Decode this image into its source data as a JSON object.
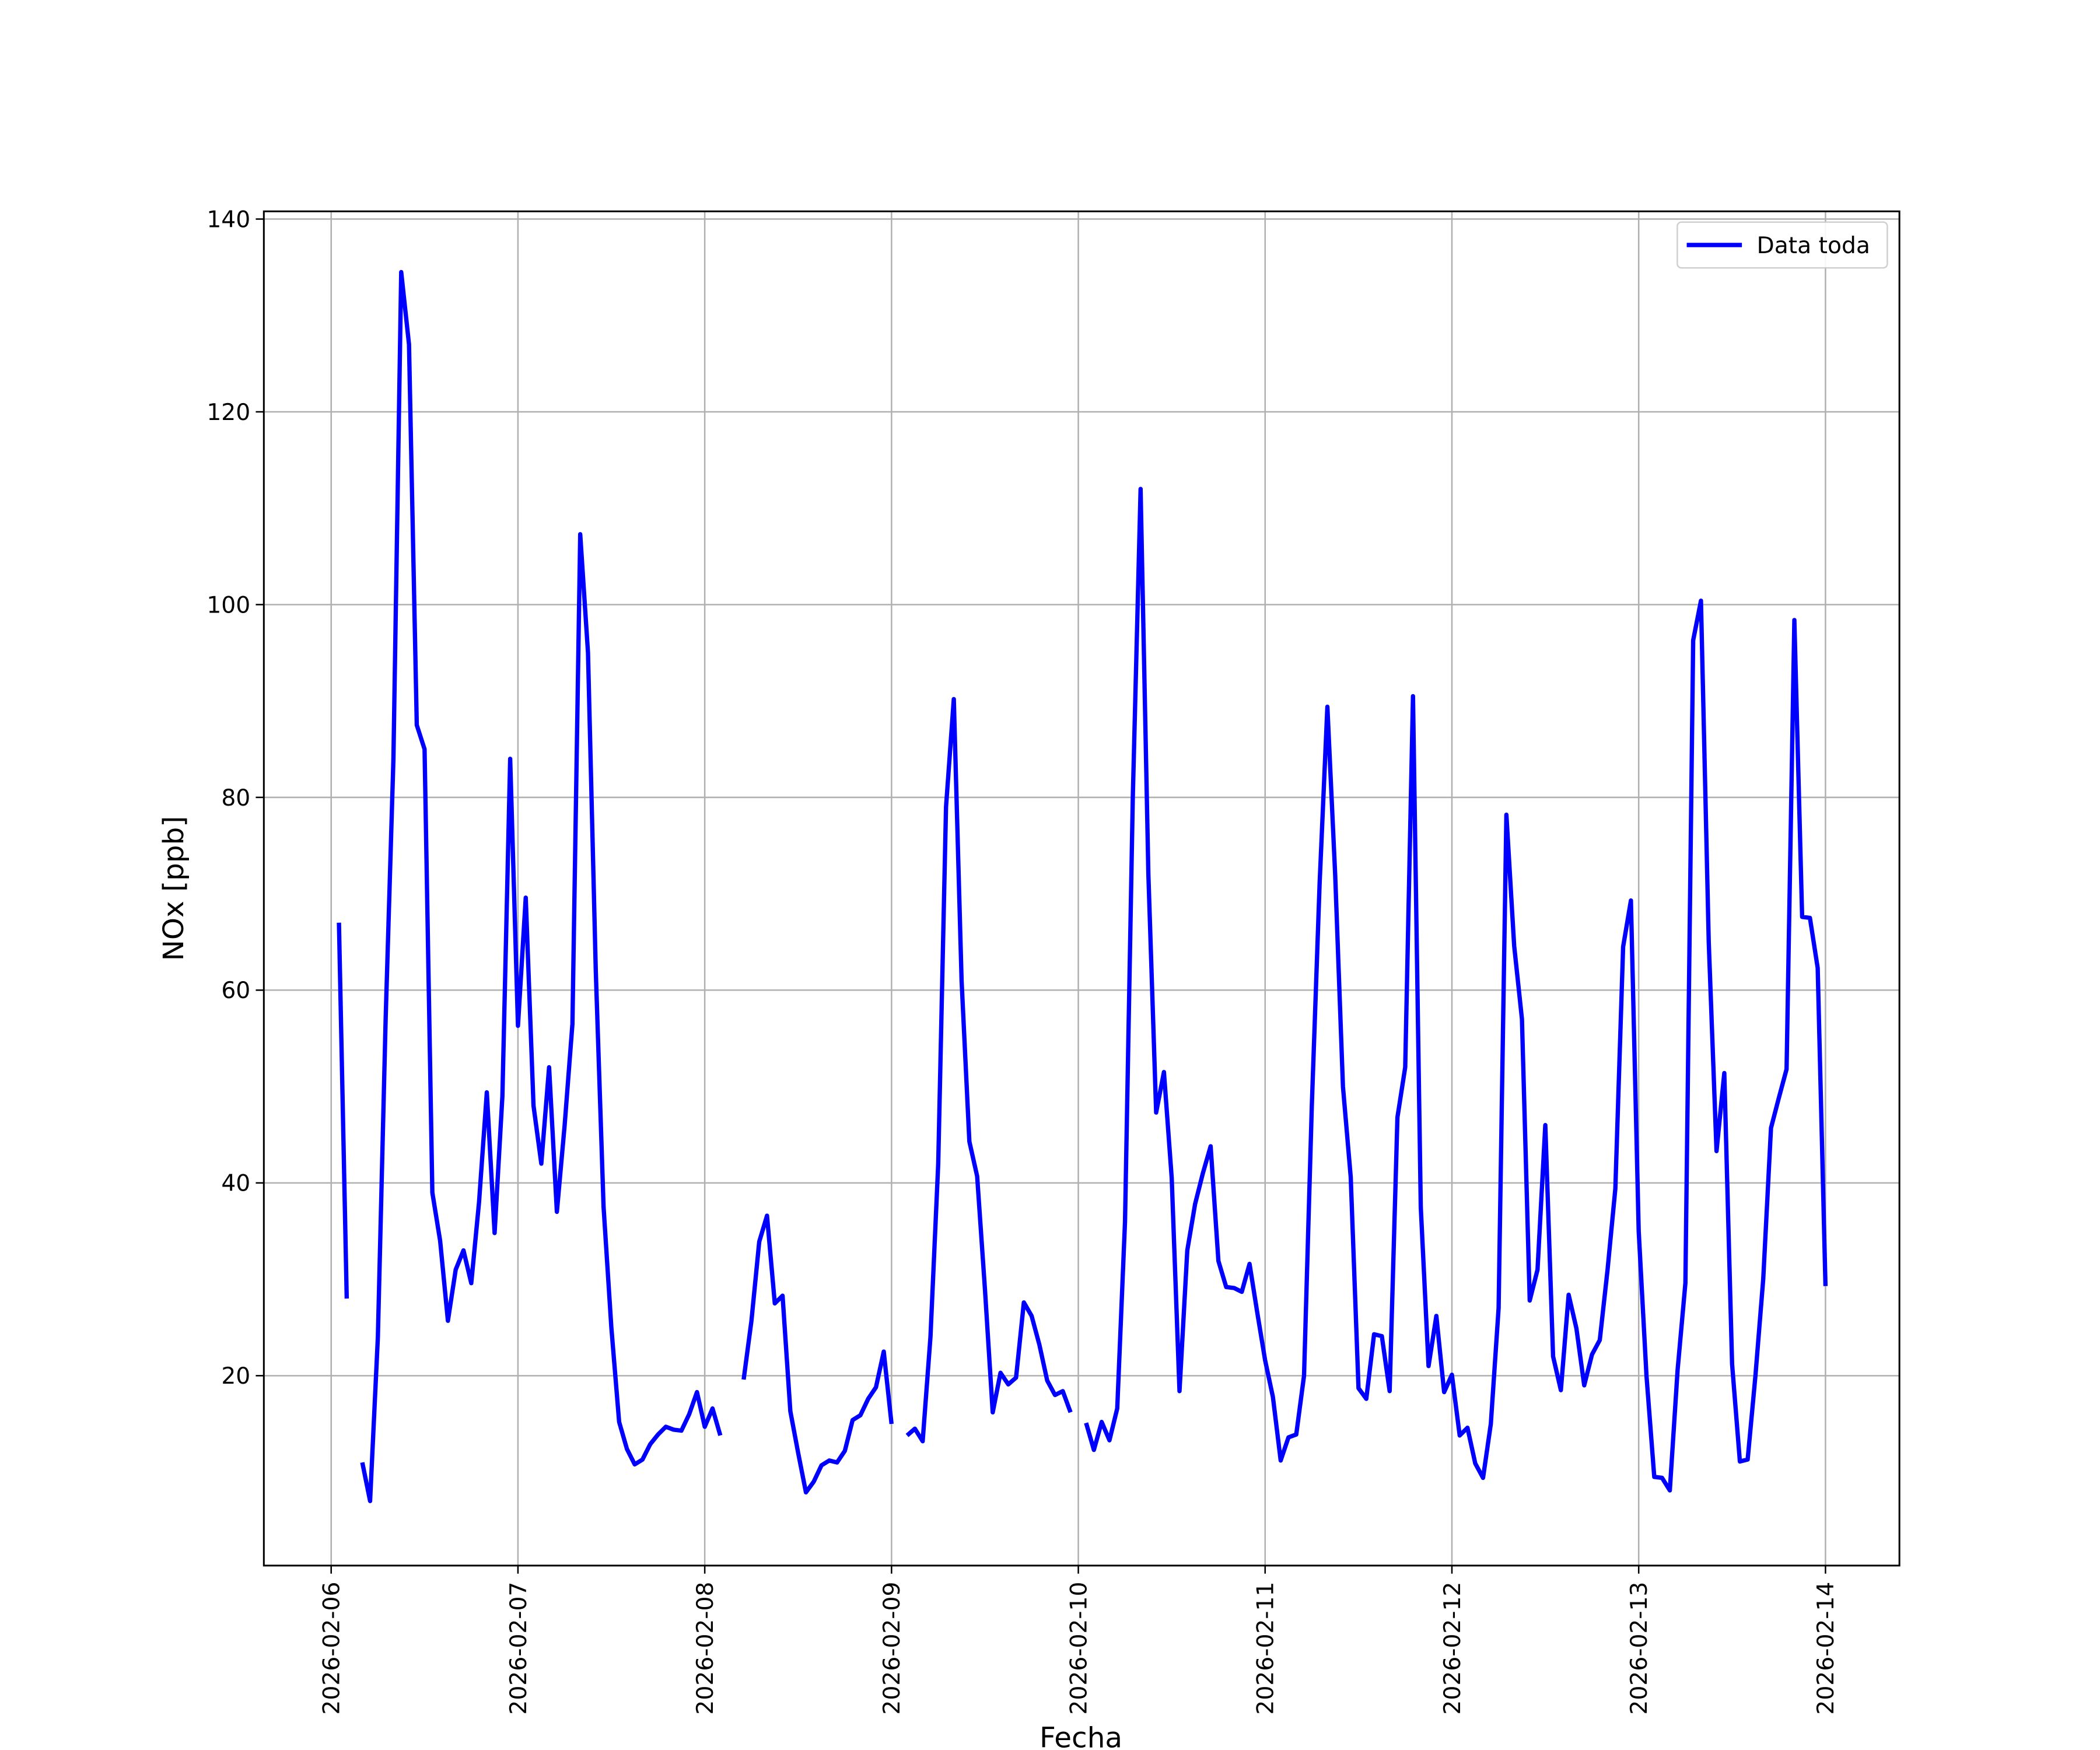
{
  "chart_data": {
    "type": "line",
    "xlabel": "Fecha",
    "ylabel": "NOx [ppb]",
    "x": [
      "2026-02-06 01:00",
      "2026-02-06 02:00",
      "2026-02-06 03:00",
      "2026-02-06 04:00",
      "2026-02-06 05:00",
      "2026-02-06 06:00",
      "2026-02-06 07:00",
      "2026-02-06 08:00",
      "2026-02-06 09:00",
      "2026-02-06 10:00",
      "2026-02-06 11:00",
      "2026-02-06 12:00",
      "2026-02-06 13:00",
      "2026-02-06 14:00",
      "2026-02-06 15:00",
      "2026-02-06 16:00",
      "2026-02-06 17:00",
      "2026-02-06 18:00",
      "2026-02-06 19:00",
      "2026-02-06 20:00",
      "2026-02-06 21:00",
      "2026-02-06 22:00",
      "2026-02-06 23:00",
      "2026-02-07 00:00",
      "2026-02-07 01:00",
      "2026-02-07 02:00",
      "2026-02-07 03:00",
      "2026-02-07 04:00",
      "2026-02-07 05:00",
      "2026-02-07 06:00",
      "2026-02-07 07:00",
      "2026-02-07 08:00",
      "2026-02-07 09:00",
      "2026-02-07 10:00",
      "2026-02-07 11:00",
      "2026-02-07 12:00",
      "2026-02-07 13:00",
      "2026-02-07 14:00",
      "2026-02-07 15:00",
      "2026-02-07 16:00",
      "2026-02-07 17:00",
      "2026-02-07 18:00",
      "2026-02-07 19:00",
      "2026-02-07 20:00",
      "2026-02-07 21:00",
      "2026-02-07 22:00",
      "2026-02-07 23:00",
      "2026-02-08 00:00",
      "2026-02-08 01:00",
      "2026-02-08 02:00",
      "2026-02-08 03:00",
      "2026-02-08 04:00",
      "2026-02-08 05:00",
      "2026-02-08 06:00",
      "2026-02-08 07:00",
      "2026-02-08 08:00",
      "2026-02-08 09:00",
      "2026-02-08 10:00",
      "2026-02-08 11:00",
      "2026-02-08 12:00",
      "2026-02-08 13:00",
      "2026-02-08 14:00",
      "2026-02-08 15:00",
      "2026-02-08 16:00",
      "2026-02-08 17:00",
      "2026-02-08 18:00",
      "2026-02-08 19:00",
      "2026-02-08 20:00",
      "2026-02-08 21:00",
      "2026-02-08 22:00",
      "2026-02-08 23:00",
      "2026-02-09 00:00",
      "2026-02-09 01:00",
      "2026-02-09 02:00",
      "2026-02-09 03:00",
      "2026-02-09 04:00",
      "2026-02-09 05:00",
      "2026-02-09 06:00",
      "2026-02-09 07:00",
      "2026-02-09 08:00",
      "2026-02-09 09:00",
      "2026-02-09 10:00",
      "2026-02-09 11:00",
      "2026-02-09 12:00",
      "2026-02-09 13:00",
      "2026-02-09 14:00",
      "2026-02-09 15:00",
      "2026-02-09 16:00",
      "2026-02-09 17:00",
      "2026-02-09 18:00",
      "2026-02-09 19:00",
      "2026-02-09 20:00",
      "2026-02-09 21:00",
      "2026-02-09 22:00",
      "2026-02-09 23:00",
      "2026-02-10 00:00",
      "2026-02-10 01:00",
      "2026-02-10 02:00",
      "2026-02-10 03:00",
      "2026-02-10 04:00",
      "2026-02-10 05:00",
      "2026-02-10 06:00",
      "2026-02-10 07:00",
      "2026-02-10 08:00",
      "2026-02-10 09:00",
      "2026-02-10 10:00",
      "2026-02-10 11:00",
      "2026-02-10 12:00",
      "2026-02-10 13:00",
      "2026-02-10 14:00",
      "2026-02-10 15:00",
      "2026-02-10 16:00",
      "2026-02-10 17:00",
      "2026-02-10 18:00",
      "2026-02-10 19:00",
      "2026-02-10 20:00",
      "2026-02-10 21:00",
      "2026-02-10 22:00",
      "2026-02-10 23:00",
      "2026-02-11 00:00",
      "2026-02-11 01:00",
      "2026-02-11 02:00",
      "2026-02-11 03:00",
      "2026-02-11 04:00",
      "2026-02-11 05:00",
      "2026-02-11 06:00",
      "2026-02-11 07:00",
      "2026-02-11 08:00",
      "2026-02-11 09:00",
      "2026-02-11 10:00",
      "2026-02-11 11:00",
      "2026-02-11 12:00",
      "2026-02-11 13:00",
      "2026-02-11 14:00",
      "2026-02-11 15:00",
      "2026-02-11 16:00",
      "2026-02-11 17:00",
      "2026-02-11 18:00",
      "2026-02-11 19:00",
      "2026-02-11 20:00",
      "2026-02-11 21:00",
      "2026-02-11 22:00",
      "2026-02-11 23:00",
      "2026-02-12 00:00",
      "2026-02-12 01:00",
      "2026-02-12 02:00",
      "2026-02-12 03:00",
      "2026-02-12 04:00",
      "2026-02-12 05:00",
      "2026-02-12 06:00",
      "2026-02-12 07:00",
      "2026-02-12 08:00",
      "2026-02-12 09:00",
      "2026-02-12 10:00",
      "2026-02-12 11:00",
      "2026-02-12 12:00",
      "2026-02-12 13:00",
      "2026-02-12 14:00",
      "2026-02-12 15:00",
      "2026-02-12 16:00",
      "2026-02-12 17:00",
      "2026-02-12 18:00",
      "2026-02-12 19:00",
      "2026-02-12 20:00",
      "2026-02-12 21:00",
      "2026-02-12 22:00",
      "2026-02-12 23:00",
      "2026-02-13 00:00",
      "2026-02-13 01:00",
      "2026-02-13 02:00",
      "2026-02-13 03:00",
      "2026-02-13 04:00",
      "2026-02-13 05:00",
      "2026-02-13 06:00",
      "2026-02-13 07:00",
      "2026-02-13 08:00",
      "2026-02-13 09:00",
      "2026-02-13 10:00",
      "2026-02-13 11:00",
      "2026-02-13 12:00",
      "2026-02-13 13:00",
      "2026-02-13 14:00",
      "2026-02-13 15:00",
      "2026-02-13 16:00",
      "2026-02-13 17:00",
      "2026-02-13 18:00",
      "2026-02-13 19:00",
      "2026-02-13 20:00",
      "2026-02-13 21:00",
      "2026-02-13 22:00",
      "2026-02-13 23:00",
      "2026-02-14 00:00"
    ],
    "series": [
      {
        "name": "Data toda",
        "color": "#0000ff",
        "values": [
          67,
          28,
          null,
          11,
          7,
          24,
          57,
          84,
          134.5,
          127,
          87.5,
          85,
          39,
          34,
          25.7,
          31,
          33,
          29.6,
          38,
          49.4,
          34.8,
          49,
          84,
          56.3,
          69.6,
          48,
          42,
          52,
          37,
          46,
          56.5,
          107.3,
          95,
          62,
          37.5,
          25,
          15.2,
          12.4,
          10.8,
          11.3,
          12.9,
          13.9,
          14.7,
          14.4,
          14.3,
          16,
          18.3,
          14.7,
          16.6,
          13.8,
          null,
          null,
          19.6,
          25.7,
          33.9,
          36.6,
          27.5,
          28.3,
          16.3,
          12,
          7.9,
          9,
          10.7,
          11.2,
          11,
          12.2,
          15.4,
          15.9,
          17.6,
          18.8,
          22.5,
          15,
          null,
          13.8,
          14.5,
          13.2,
          24,
          42,
          79,
          90.2,
          61,
          44.3,
          40.7,
          29,
          16.2,
          20.3,
          19.1,
          19.8,
          27.6,
          26.2,
          23.2,
          19.5,
          18,
          18.4,
          16.2,
          null,
          15.1,
          12.3,
          15.2,
          13.3,
          16.6,
          36,
          80,
          112,
          72,
          47.3,
          51.5,
          40.5,
          18.4,
          33,
          37.8,
          41,
          43.8,
          31.9,
          29.2,
          29.1,
          28.7,
          31.6,
          26.5,
          21.6,
          17.8,
          11.2,
          13.6,
          13.9,
          20,
          48,
          71,
          89.4,
          72,
          50,
          40.6,
          18.7,
          17.6,
          24.3,
          24.1,
          18.4,
          46.8,
          52,
          90.5,
          37.5,
          21,
          26.2,
          18.3,
          20.1,
          13.8,
          14.6,
          10.9,
          9.4,
          15,
          27,
          78.2,
          64.6,
          57,
          27.8,
          31,
          46,
          22,
          18.5,
          28.4,
          24.9,
          19,
          22.2,
          23.7,
          31,
          39.4,
          64.5,
          69.3,
          35,
          20,
          9.5,
          9.4,
          8.1,
          20.6,
          29.6,
          96.3,
          100.4,
          65,
          43.3,
          51.4,
          21.2,
          11.1,
          11.3,
          20,
          30,
          45.7,
          48.8,
          51.8,
          98.4,
          67.6,
          67.5,
          62.3,
          29.3
        ]
      }
    ],
    "xlim": [
      "2026-02-05 15:21",
      "2026-02-14 09:30"
    ],
    "xticks": [
      "2026-02-06",
      "2026-02-07",
      "2026-02-08",
      "2026-02-09",
      "2026-02-10",
      "2026-02-11",
      "2026-02-12",
      "2026-02-13",
      "2026-02-14"
    ],
    "ylim": [
      0.3,
      140.8
    ],
    "yticks": [
      20,
      40,
      60,
      80,
      100,
      120,
      140
    ],
    "grid": true,
    "legend": "upper right"
  }
}
